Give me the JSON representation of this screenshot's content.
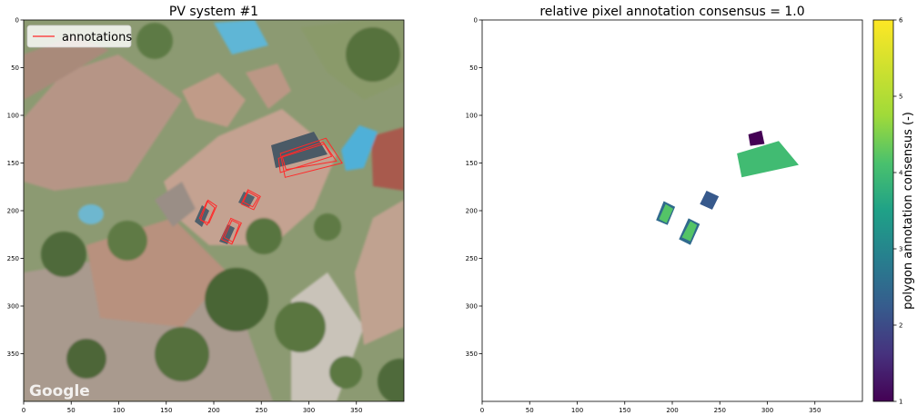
{
  "left_panel": {
    "title": "PV system #1",
    "legend_label": "annotations",
    "watermark": "Google",
    "annotation_color": "#ff2a2a"
  },
  "right_panel": {
    "title": "relative pixel annotation consensus = 1.0",
    "colorbar_label": "polygon annotation consensus (-)",
    "colormap": "viridis"
  },
  "chart_data": [
    {
      "type": "image",
      "title": "PV system #1",
      "xlim": [
        0,
        400
      ],
      "ylim": [
        400,
        0
      ],
      "xticks": [
        0,
        50,
        100,
        150,
        200,
        250,
        300,
        350
      ],
      "yticks": [
        0,
        50,
        100,
        150,
        200,
        250,
        300,
        350
      ],
      "legend": {
        "entries": [
          "annotations"
        ],
        "placement": "top-left"
      },
      "annotations": [
        {
          "polygon": [
            [
              275,
              165
            ],
            [
              270,
              140
            ],
            [
              318,
              124
            ],
            [
              335,
              150
            ]
          ]
        },
        {
          "polygon": [
            [
              276,
              157
            ],
            [
              272,
              143
            ],
            [
              315,
              128
            ],
            [
              329,
              148
            ]
          ]
        },
        {
          "polygon": [
            [
              270,
              160
            ],
            [
              268,
              145
            ],
            [
              316,
              130
            ],
            [
              324,
              143
            ]
          ]
        },
        {
          "polygon": [
            [
              185,
              208
            ],
            [
              193,
              190
            ],
            [
              201,
              197
            ],
            [
              193,
              215
            ]
          ]
        },
        {
          "polygon": [
            [
              186,
              210
            ],
            [
              194,
              189
            ],
            [
              203,
              195
            ],
            [
              195,
              213
            ]
          ]
        },
        {
          "polygon": [
            [
              211,
              228
            ],
            [
              219,
              210
            ],
            [
              227,
              214
            ],
            [
              220,
              233
            ]
          ]
        },
        {
          "polygon": [
            [
              208,
              230
            ],
            [
              218,
              208
            ],
            [
              229,
              213
            ],
            [
              219,
              235
            ]
          ]
        },
        {
          "polygon": [
            [
              231,
              191
            ],
            [
              236,
              180
            ],
            [
              247,
              186
            ],
            [
              241,
              196
            ]
          ]
        },
        {
          "polygon": [
            [
              229,
              193
            ],
            [
              236,
              178
            ],
            [
              249,
              185
            ],
            [
              242,
              199
            ]
          ]
        }
      ]
    },
    {
      "type": "heatmap",
      "title": "relative pixel annotation consensus = 1.0",
      "xlim": [
        0,
        400
      ],
      "ylim": [
        400,
        0
      ],
      "xticks": [
        0,
        50,
        100,
        150,
        200,
        250,
        300,
        350
      ],
      "yticks": [
        0,
        50,
        100,
        150,
        200,
        250,
        300,
        350
      ],
      "colorbar": {
        "label": "polygon annotation consensus (-)",
        "range": [
          1,
          6
        ],
        "ticks": [
          1,
          2,
          3,
          4,
          5,
          6
        ]
      },
      "regions": [
        {
          "value": 1,
          "polygon": [
            [
              282,
              132
            ],
            [
              280,
              120
            ],
            [
              294,
              116
            ],
            [
              297,
              130
            ]
          ]
        },
        {
          "value": 4,
          "polygon": [
            [
              273,
              165
            ],
            [
              268,
              140
            ],
            [
              312,
              127
            ],
            [
              333,
              152
            ]
          ]
        },
        {
          "value": 2.2,
          "polygon": [
            [
              229,
              193
            ],
            [
              236,
              179
            ],
            [
              249,
              185
            ],
            [
              242,
              199
            ]
          ]
        },
        {
          "value": 2.5,
          "polygon": [
            [
              183,
              210
            ],
            [
              191,
              190
            ],
            [
              203,
              196
            ],
            [
              195,
              215
            ]
          ]
        },
        {
          "value": 4.2,
          "polygon": [
            [
              186,
              209
            ],
            [
              193,
              193
            ],
            [
              201,
              198
            ],
            [
              194,
              213
            ]
          ]
        },
        {
          "value": 2.5,
          "polygon": [
            [
              207,
              230
            ],
            [
              217,
              208
            ],
            [
              229,
              214
            ],
            [
              219,
              236
            ]
          ]
        },
        {
          "value": 4.2,
          "polygon": [
            [
              210,
              228
            ],
            [
              219,
              211
            ],
            [
              226,
              215
            ],
            [
              219,
              232
            ]
          ]
        }
      ]
    }
  ]
}
